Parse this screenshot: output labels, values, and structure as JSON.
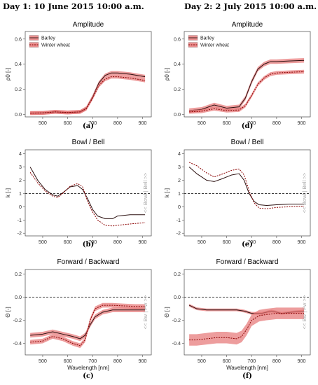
{
  "headers": {
    "left": "Day 1: 10 June 2015 10:00 a.m.",
    "right": "Day 2: 2 July 2015 10:00 a.m."
  },
  "colors": {
    "barley_line": "#2b1010",
    "wheat_line": "#8b0000",
    "band": "#e57373",
    "zero_line": "#222222"
  },
  "chart_data": [
    {
      "id": "a",
      "type": "line",
      "title": "Amplitude",
      "panel_label": "(a)",
      "ylabel": "ρ0 [-]",
      "xlabel": "",
      "x_ticks": [
        500,
        600,
        700,
        800,
        900
      ],
      "xlim": [
        430,
        935
      ],
      "y_ticks": [
        0.0,
        0.2,
        0.4,
        0.6
      ],
      "y_tick_labels": [
        "0.0",
        "0.2",
        "0.4",
        "0.6"
      ],
      "ylim": [
        -0.02,
        0.66
      ],
      "legend": [
        "Barley",
        "Winter wheat"
      ],
      "legend_position": "top-left",
      "series": [
        {
          "name": "Barley",
          "style": "solid",
          "band": 0.015,
          "x": [
            450,
            500,
            550,
            600,
            650,
            675,
            700,
            725,
            750,
            775,
            800,
            850,
            910
          ],
          "y": [
            0.01,
            0.012,
            0.02,
            0.015,
            0.02,
            0.05,
            0.14,
            0.25,
            0.31,
            0.33,
            0.33,
            0.32,
            0.3
          ]
        },
        {
          "name": "Winter wheat",
          "style": "dashed",
          "band": 0.015,
          "x": [
            450,
            500,
            550,
            600,
            650,
            675,
            700,
            725,
            750,
            775,
            800,
            850,
            910
          ],
          "y": [
            0.01,
            0.012,
            0.02,
            0.015,
            0.02,
            0.045,
            0.13,
            0.23,
            0.28,
            0.3,
            0.3,
            0.29,
            0.27
          ]
        }
      ]
    },
    {
      "id": "d",
      "type": "line",
      "title": "Amplitude",
      "panel_label": "(d)",
      "ylabel": "ρ0 [-]",
      "xlabel": "",
      "x_ticks": [
        500,
        600,
        700,
        800,
        900
      ],
      "xlim": [
        430,
        935
      ],
      "y_ticks": [
        0.0,
        0.2,
        0.4,
        0.6
      ],
      "y_tick_labels": [
        "0.0",
        "0.2",
        "0.4",
        "0.6"
      ],
      "ylim": [
        -0.02,
        0.66
      ],
      "legend": [
        "Barley",
        "Winter wheat"
      ],
      "legend_position": "top-left",
      "series": [
        {
          "name": "Barley",
          "style": "solid",
          "band": 0.018,
          "x": [
            450,
            500,
            550,
            600,
            650,
            675,
            700,
            725,
            750,
            775,
            800,
            850,
            910
          ],
          "y": [
            0.03,
            0.04,
            0.075,
            0.05,
            0.06,
            0.13,
            0.26,
            0.36,
            0.4,
            0.42,
            0.42,
            0.425,
            0.43
          ]
        },
        {
          "name": "Winter wheat",
          "style": "dashed",
          "band": 0.015,
          "x": [
            450,
            500,
            550,
            600,
            650,
            675,
            700,
            725,
            750,
            775,
            800,
            850,
            910
          ],
          "y": [
            0.02,
            0.025,
            0.045,
            0.03,
            0.035,
            0.07,
            0.15,
            0.24,
            0.29,
            0.32,
            0.33,
            0.335,
            0.34
          ]
        }
      ]
    },
    {
      "id": "b",
      "type": "line",
      "title": "Bowl / Bell",
      "panel_label": "(b)",
      "ylabel": "k [-]",
      "xlabel": "",
      "x_ticks": [
        500,
        600,
        700,
        800,
        900
      ],
      "xlim": [
        430,
        935
      ],
      "y_ticks": [
        -2,
        -1,
        0,
        1,
        2,
        3,
        4
      ],
      "y_tick_labels": [
        "-2",
        "-1",
        "0",
        "1",
        "2",
        "3",
        "4"
      ],
      "ylim": [
        -2.2,
        4.3
      ],
      "ref_line": 1,
      "side_label": "<< Bowl | Bell >>",
      "series": [
        {
          "name": "Barley",
          "style": "solid",
          "x": [
            450,
            480,
            510,
            540,
            560,
            580,
            610,
            640,
            660,
            680,
            700,
            720,
            750,
            780,
            800,
            850,
            910
          ],
          "y": [
            3.0,
            2.0,
            1.3,
            0.9,
            0.8,
            1.05,
            1.5,
            1.6,
            1.3,
            0.6,
            -0.2,
            -0.7,
            -0.9,
            -0.9,
            -0.7,
            -0.6,
            -0.6
          ]
        },
        {
          "name": "Winter wheat",
          "style": "dashed",
          "x": [
            450,
            480,
            510,
            540,
            560,
            580,
            610,
            640,
            660,
            680,
            700,
            720,
            750,
            780,
            800,
            850,
            910
          ],
          "y": [
            2.6,
            1.8,
            1.2,
            0.8,
            0.7,
            1.0,
            1.55,
            1.75,
            1.5,
            0.4,
            -0.4,
            -1.0,
            -1.4,
            -1.45,
            -1.4,
            -1.3,
            -1.2
          ]
        }
      ]
    },
    {
      "id": "e",
      "type": "line",
      "title": "Bowl / Bell",
      "panel_label": "(e)",
      "ylabel": "k [-]",
      "xlabel": "",
      "x_ticks": [
        500,
        600,
        700,
        800,
        900
      ],
      "xlim": [
        430,
        935
      ],
      "y_ticks": [
        -2,
        -1,
        0,
        1,
        2,
        3,
        4
      ],
      "y_tick_labels": [
        "-2",
        "-1",
        "0",
        "1",
        "2",
        "3",
        "4"
      ],
      "ylim": [
        -2.2,
        4.3
      ],
      "ref_line": 1,
      "side_label": "<< Bowl | Bell >>",
      "series": [
        {
          "name": "Barley",
          "style": "solid",
          "x": [
            450,
            480,
            520,
            550,
            580,
            620,
            650,
            670,
            690,
            710,
            730,
            760,
            800,
            850,
            910
          ],
          "y": [
            3.0,
            2.5,
            2.0,
            1.9,
            2.1,
            2.4,
            2.5,
            2.0,
            1.0,
            0.4,
            0.15,
            0.1,
            0.15,
            0.2,
            0.2
          ]
        },
        {
          "name": "Winter wheat",
          "style": "dashed",
          "x": [
            450,
            480,
            520,
            550,
            580,
            620,
            650,
            670,
            690,
            710,
            730,
            760,
            800,
            850,
            910
          ],
          "y": [
            3.35,
            3.1,
            2.55,
            2.25,
            2.45,
            2.75,
            2.85,
            2.4,
            1.2,
            0.3,
            -0.1,
            -0.15,
            -0.05,
            0.0,
            0.05
          ]
        }
      ]
    },
    {
      "id": "c",
      "type": "line",
      "title": "Forward / Backward",
      "panel_label": "(c)",
      "ylabel": "Θ [-]",
      "xlabel": "Wavelength [nm]",
      "x_ticks": [
        500,
        600,
        700,
        800,
        900
      ],
      "xlim": [
        430,
        935
      ],
      "y_ticks": [
        -0.4,
        -0.2,
        0.0,
        0.2
      ],
      "y_tick_labels": [
        "-0.4",
        "-0.2",
        "0.0",
        "0.2"
      ],
      "ylim": [
        -0.5,
        0.24
      ],
      "ref_line": 0,
      "side_label": "<< Bw | Fw >>",
      "series": [
        {
          "name": "Barley",
          "style": "solid",
          "band": 0.02,
          "x": [
            450,
            500,
            540,
            580,
            620,
            650,
            670,
            690,
            710,
            740,
            780,
            820,
            870,
            910
          ],
          "y": [
            -0.33,
            -0.32,
            -0.3,
            -0.32,
            -0.34,
            -0.36,
            -0.33,
            -0.24,
            -0.17,
            -0.13,
            -0.11,
            -0.11,
            -0.11,
            -0.11
          ]
        },
        {
          "name": "Winter wheat",
          "style": "dashed",
          "band": 0.02,
          "x": [
            450,
            500,
            540,
            580,
            620,
            650,
            670,
            690,
            710,
            740,
            780,
            820,
            870,
            910
          ],
          "y": [
            -0.39,
            -0.38,
            -0.34,
            -0.36,
            -0.4,
            -0.42,
            -0.37,
            -0.2,
            -0.1,
            -0.07,
            -0.07,
            -0.075,
            -0.08,
            -0.08
          ]
        }
      ]
    },
    {
      "id": "f",
      "type": "line",
      "title": "Forward / Backward",
      "panel_label": "(f)",
      "ylabel": "Θ [-]",
      "xlabel": "Wavelength [nm]",
      "x_ticks": [
        500,
        600,
        700,
        800,
        900
      ],
      "xlim": [
        430,
        935
      ],
      "y_ticks": [
        -0.4,
        -0.2,
        0.0,
        0.2
      ],
      "y_tick_labels": [
        "-0.4",
        "-0.2",
        "0.0",
        "0.2"
      ],
      "ylim": [
        -0.5,
        0.24
      ],
      "ref_line": 0,
      "side_label": "<< Bw | Fw >>",
      "series": [
        {
          "name": "Barley",
          "style": "solid",
          "band": 0.012,
          "x": [
            450,
            480,
            520,
            560,
            600,
            640,
            670,
            700,
            740,
            780,
            820,
            860,
            910
          ],
          "y": [
            -0.07,
            -0.1,
            -0.11,
            -0.11,
            -0.11,
            -0.11,
            -0.12,
            -0.14,
            -0.14,
            -0.12,
            -0.14,
            -0.13,
            -0.12
          ]
        },
        {
          "name": "Winter wheat",
          "style": "dashed",
          "band": 0.05,
          "x": [
            450,
            480,
            520,
            560,
            600,
            640,
            660,
            680,
            700,
            730,
            760,
            800,
            850,
            910
          ],
          "y": [
            -0.37,
            -0.37,
            -0.36,
            -0.35,
            -0.35,
            -0.36,
            -0.34,
            -0.28,
            -0.2,
            -0.16,
            -0.15,
            -0.14,
            -0.14,
            -0.14
          ]
        }
      ]
    }
  ]
}
